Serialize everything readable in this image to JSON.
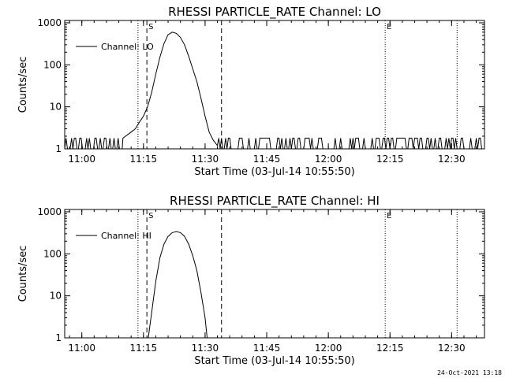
{
  "footer": {
    "date_stamp": "24-Oct-2021 13:18"
  },
  "chart_data": [
    {
      "type": "line",
      "title": "RHESSI PARTICLE_RATE Channel: LO",
      "xlabel": "Start Time (03-Jul-14 10:55:50)",
      "ylabel": "Counts/sec",
      "y_scale": "log",
      "ylim": [
        1,
        1000
      ],
      "xlim": [
        "10:55:50",
        "12:38:00"
      ],
      "x_ticks": [
        "11:00",
        "11:15",
        "11:30",
        "11:45",
        "12:00",
        "12:15",
        "12:30"
      ],
      "y_ticks": [
        "1",
        "10",
        "100",
        "1000"
      ],
      "legend": {
        "placement": "top-left",
        "entries": [
          "Channel: LO"
        ]
      },
      "color": "#000000",
      "markers": [
        {
          "time": "11:13:40",
          "style": "dotted",
          "label": ""
        },
        {
          "time": "11:15:50",
          "style": "dashed",
          "label": "S"
        },
        {
          "time": "11:34:00",
          "style": "dashed",
          "label": ""
        },
        {
          "time": "12:13:50",
          "style": "dotted",
          "label": "E"
        },
        {
          "time": "12:31:20",
          "style": "dotted",
          "label": ""
        }
      ],
      "series": [
        {
          "name": "Channel: LO",
          "noise": {
            "start": "10:55:50",
            "end": "12:38:00",
            "low": 1,
            "high": 1.8
          },
          "x": [
            "11:10:00",
            "11:11:30",
            "11:13:00",
            "11:14:00",
            "11:15:00",
            "11:16:00",
            "11:17:00",
            "11:18:00",
            "11:19:00",
            "11:20:00",
            "11:21:00",
            "11:22:00",
            "11:23:00",
            "11:24:00",
            "11:25:00",
            "11:26:00",
            "11:27:00",
            "11:28:00",
            "11:29:00",
            "11:30:00",
            "11:31:00",
            "11:32:00",
            "11:33:00"
          ],
          "y": [
            1.8,
            2.3,
            3,
            4.3,
            6,
            10,
            22,
            60,
            150,
            320,
            520,
            600,
            560,
            450,
            300,
            160,
            80,
            40,
            16,
            6,
            2.5,
            1.6,
            1.2
          ]
        }
      ]
    },
    {
      "type": "line",
      "title": "RHESSI PARTICLE_RATE Channel: HI",
      "xlabel": "Start Time (03-Jul-14 10:55:50)",
      "ylabel": "Counts/sec",
      "y_scale": "log",
      "ylim": [
        1,
        1000
      ],
      "xlim": [
        "10:55:50",
        "12:38:00"
      ],
      "x_ticks": [
        "11:00",
        "11:15",
        "11:30",
        "11:45",
        "12:00",
        "12:15",
        "12:30"
      ],
      "y_ticks": [
        "1",
        "10",
        "100",
        "1000"
      ],
      "legend": {
        "placement": "top-left",
        "entries": [
          "Channel: HI"
        ]
      },
      "color": "#000000",
      "markers": [
        {
          "time": "11:13:40",
          "style": "dotted",
          "label": ""
        },
        {
          "time": "11:15:50",
          "style": "dashed",
          "label": "S"
        },
        {
          "time": "11:34:00",
          "style": "dashed",
          "label": ""
        },
        {
          "time": "12:13:50",
          "style": "dotted",
          "label": "E"
        },
        {
          "time": "12:31:20",
          "style": "dotted",
          "label": ""
        }
      ],
      "series": [
        {
          "name": "Channel: HI",
          "x": [
            "11:16:10",
            "11:17:00",
            "11:18:00",
            "11:19:00",
            "11:20:00",
            "11:21:00",
            "11:22:00",
            "11:23:00",
            "11:24:00",
            "11:25:00",
            "11:26:00",
            "11:27:00",
            "11:28:00",
            "11:29:00",
            "11:30:00",
            "11:30:30"
          ],
          "y": [
            1,
            4,
            22,
            80,
            170,
            260,
            320,
            340,
            320,
            260,
            170,
            90,
            40,
            12,
            3,
            1
          ]
        }
      ]
    }
  ]
}
